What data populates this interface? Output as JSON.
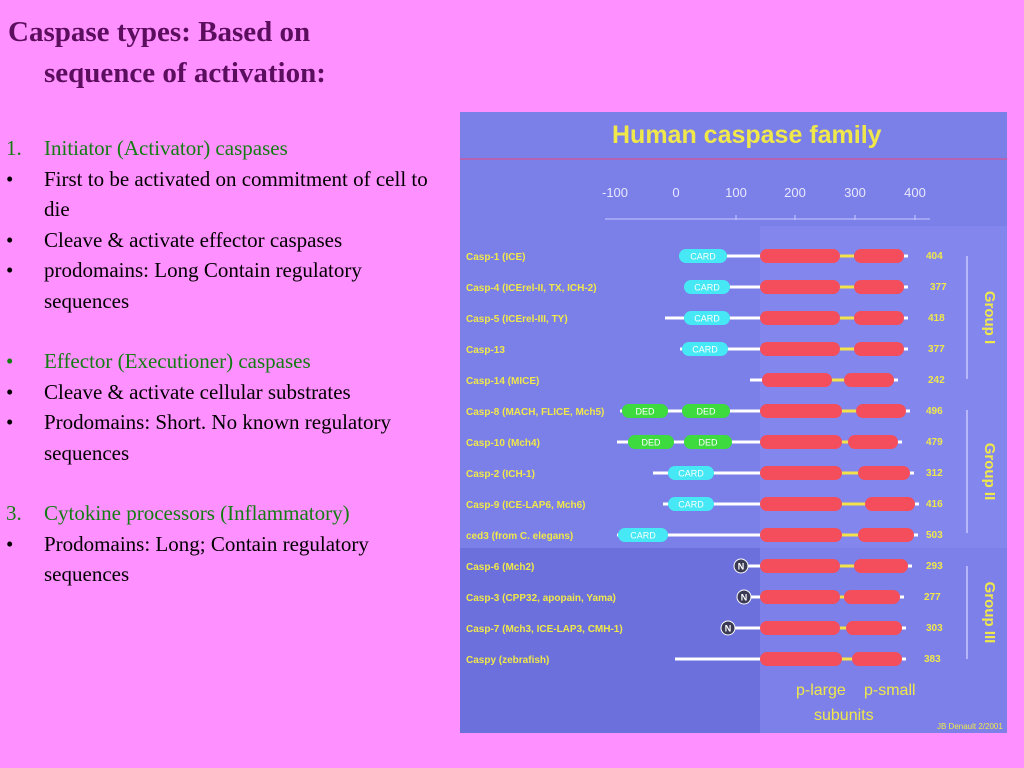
{
  "slide": {
    "title_line1": "Caspase types: Based on",
    "title_line2": "sequence of activation:",
    "items": [
      {
        "marker": "1.",
        "text": "Initiator (Activator) caspases",
        "green": true
      },
      {
        "marker": "•",
        "text": "First to be activated on commitment of cell to die"
      },
      {
        "marker": "•",
        "text": "Cleave & activate effector caspases"
      },
      {
        "marker": "•",
        "text": "prodomains: Long Contain regulatory sequences"
      },
      {
        "marker": "•",
        "text": "Effector (Executioner) caspases",
        "green": true
      },
      {
        "marker": "•",
        "text": "Cleave & activate cellular substrates"
      },
      {
        "marker": "•",
        "text": "Prodomains: Short. No known regulatory sequences"
      },
      {
        "marker": "3.",
        "text": "Cytokine processors (Inflammatory)",
        "green": true
      },
      {
        "marker": "•",
        "text": "Prodomains: Long; Contain regulatory sequences"
      }
    ]
  },
  "figure": {
    "title": "Human caspase family",
    "scale": [
      "-100",
      "0",
      "100",
      "200",
      "300",
      "400"
    ],
    "rows": [
      {
        "name": "Casp-1 (ICE)",
        "length": "404",
        "domains": [
          "CARD"
        ]
      },
      {
        "name": "Casp-4 (ICErel-II, TX, ICH-2)",
        "length": "377",
        "domains": [
          "CARD"
        ]
      },
      {
        "name": "Casp-5 (ICErel-III, TY)",
        "length": "418",
        "domains": [
          "CARD"
        ]
      },
      {
        "name": "Casp-13",
        "length": "377",
        "domains": [
          "CARD"
        ]
      },
      {
        "name": "Casp-14 (MICE)",
        "length": "242",
        "domains": []
      },
      {
        "name": "Casp-8 (MACH, FLICE, Mch5)",
        "length": "496",
        "domains": [
          "DED",
          "DED"
        ]
      },
      {
        "name": "Casp-10 (Mch4)",
        "length": "479",
        "domains": [
          "DED",
          "DED"
        ]
      },
      {
        "name": "Casp-2 (ICH-1)",
        "length": "312",
        "domains": [
          "CARD"
        ]
      },
      {
        "name": "Casp-9 (ICE-LAP6, Mch6)",
        "length": "416",
        "domains": [
          "CARD"
        ]
      },
      {
        "name": "ced3 (from C. elegans)",
        "length": "503",
        "domains": [
          "CARD"
        ]
      },
      {
        "name": "Casp-6 (Mch2)",
        "length": "293",
        "domains": [
          "N"
        ]
      },
      {
        "name": "Casp-3 (CPP32, apopain, Yama)",
        "length": "277",
        "domains": [
          "N"
        ]
      },
      {
        "name": "Casp-7 (Mch3, ICE-LAP3, CMH-1)",
        "length": "303",
        "domains": [
          "N"
        ]
      },
      {
        "name": "Caspy (zebrafish)",
        "length": "383",
        "domains": []
      }
    ],
    "groups": [
      "Group I",
      "Group II",
      "Group III"
    ],
    "labels": {
      "p_large": "p-large",
      "p_small": "p-small",
      "subunits": "subunits"
    },
    "credit": "JB Denault 2/2001",
    "colors": {
      "large": "#f44d5b",
      "card": "#45e8f4",
      "ded": "#3ddb3d",
      "n": "#3a3a55",
      "linker": "#f3e24a",
      "title": "#f0e84a"
    }
  }
}
